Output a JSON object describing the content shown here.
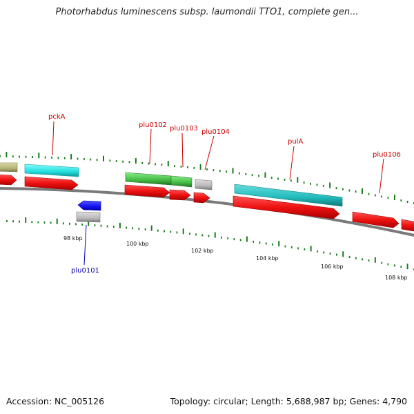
{
  "title": "Photorhabdus luminescens subsp. laumondii TTO1, complete gen...",
  "footer": {
    "accession": "Accession: NC_005126",
    "summary": "Topology: circular; Length: 5,688,987 bp; Genes: 4,790"
  },
  "colors": {
    "backbone": "#888888",
    "tick": "#1a7a1a",
    "gene_label": "#cc0000",
    "reverse_gene_label": "#0000aa"
  },
  "gene_labels": [
    {
      "name": "pckA",
      "strand": "forward"
    },
    {
      "name": "plu0102",
      "strand": "forward"
    },
    {
      "name": "plu0103",
      "strand": "forward"
    },
    {
      "name": "plu0104",
      "strand": "forward"
    },
    {
      "name": "pulA",
      "strand": "forward"
    },
    {
      "name": "plu0106",
      "strand": "forward"
    },
    {
      "name": "plu0101",
      "strand": "reverse"
    }
  ],
  "scale_labels": [
    "98 kbp",
    "100 kbp",
    "102 kbp",
    "104 kbp",
    "106 kbp",
    "108 kbp"
  ],
  "features": [
    {
      "name": "feature-olive",
      "color": "#b5b57a"
    },
    {
      "name": "feature-pckA-cyan",
      "color": "#22dddd"
    },
    {
      "name": "feature-plu0102-green",
      "color": "#44bb44"
    },
    {
      "name": "feature-plu0103-green",
      "color": "#44bb44"
    },
    {
      "name": "feature-plu0104-gray",
      "color": "#bbbbbb"
    },
    {
      "name": "feature-pulA-teal",
      "color": "#22bbbb"
    },
    {
      "name": "feature-plu0101-blue",
      "color": "#1111ee"
    },
    {
      "name": "feature-plu0101-gray",
      "color": "#bbbbbb"
    }
  ],
  "gene_arrows_color": "#ee1111"
}
